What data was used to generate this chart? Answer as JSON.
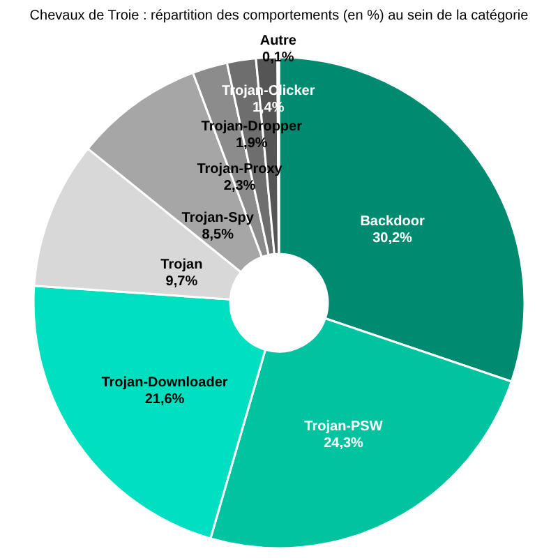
{
  "chart_data": {
    "type": "donut",
    "title": "Chevaux de Troie : répartition des comportements (en %) au sein de la catégorie",
    "categories": [
      "Backdoor",
      "Trojan-PSW",
      "Trojan-Downloader",
      "Trojan",
      "Trojan-Spy",
      "Trojan-Proxy",
      "Trojan-Dropper",
      "Trojan-Clicker",
      "Autre"
    ],
    "values": [
      30.2,
      24.3,
      21.6,
      9.7,
      8.5,
      2.3,
      1.9,
      1.4,
      0.1
    ],
    "value_labels": [
      "30,2%",
      "24,3%",
      "21,6%",
      "9,7%",
      "8,5%",
      "2,3%",
      "1,9%",
      "1,4%",
      "0,1%"
    ],
    "colors": [
      "#008b71",
      "#00c4a0",
      "#00e0c0",
      "#d8d8d8",
      "#a6a6a6",
      "#8c8c8c",
      "#6e6e6e",
      "#555555",
      "#333333"
    ],
    "legend": false
  }
}
